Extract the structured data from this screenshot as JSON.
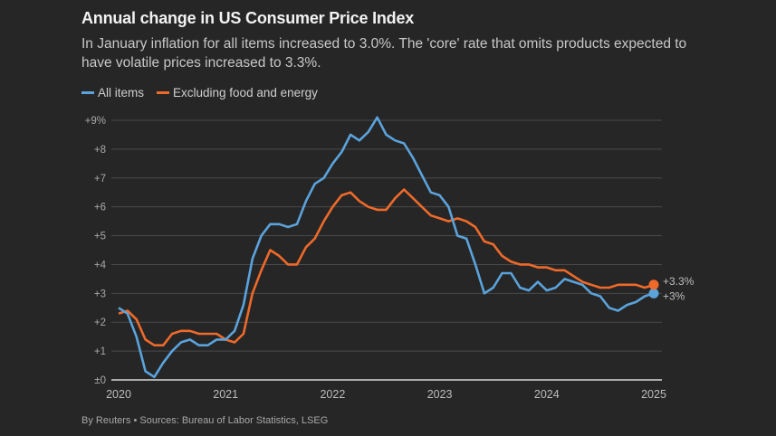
{
  "header": {
    "title": "Annual change in US Consumer Price Index",
    "subtitle": "In January inflation for all items increased to 3.0%. The 'core' rate that omits products expected to have volatile prices increased to 3.3%."
  },
  "footer": "By Reuters • Sources: Bureau of Labor Statistics, LSEG",
  "chart_data": {
    "type": "line",
    "title": "Annual change in US Consumer Price Index",
    "xlabel": "",
    "ylabel": "",
    "x_start": "2020-01",
    "x_end": "2025-01",
    "frequency": "monthly",
    "xticks": [
      "2020",
      "2021",
      "2022",
      "2023",
      "2024",
      "2025"
    ],
    "yticks": [
      "±0",
      "+1",
      "+2",
      "+3",
      "+4",
      "+5",
      "+6",
      "+7",
      "+8",
      "+9%"
    ],
    "ylim": [
      0,
      9
    ],
    "grid": true,
    "legend_position": "top-left",
    "series": [
      {
        "name": "All items",
        "color": "#5ba3dc",
        "end_label": "+3%",
        "values": [
          2.5,
          2.3,
          1.5,
          0.3,
          0.1,
          0.6,
          1.0,
          1.3,
          1.4,
          1.2,
          1.2,
          1.4,
          1.4,
          1.7,
          2.6,
          4.2,
          5.0,
          5.4,
          5.4,
          5.3,
          5.4,
          6.2,
          6.8,
          7.0,
          7.5,
          7.9,
          8.5,
          8.3,
          8.6,
          9.1,
          8.5,
          8.3,
          8.2,
          7.7,
          7.1,
          6.5,
          6.4,
          6.0,
          5.0,
          4.9,
          4.0,
          3.0,
          3.2,
          3.7,
          3.7,
          3.2,
          3.1,
          3.4,
          3.1,
          3.2,
          3.5,
          3.4,
          3.3,
          3.0,
          2.9,
          2.5,
          2.4,
          2.6,
          2.7,
          2.9,
          3.0
        ]
      },
      {
        "name": "Excluding food and energy",
        "color": "#ee6a2a",
        "end_label": "+3.3%",
        "values": [
          2.3,
          2.4,
          2.1,
          1.4,
          1.2,
          1.2,
          1.6,
          1.7,
          1.7,
          1.6,
          1.6,
          1.6,
          1.4,
          1.3,
          1.6,
          3.0,
          3.8,
          4.5,
          4.3,
          4.0,
          4.0,
          4.6,
          4.9,
          5.5,
          6.0,
          6.4,
          6.5,
          6.2,
          6.0,
          5.9,
          5.9,
          6.3,
          6.6,
          6.3,
          6.0,
          5.7,
          5.6,
          5.5,
          5.6,
          5.5,
          5.3,
          4.8,
          4.7,
          4.3,
          4.1,
          4.0,
          4.0,
          3.9,
          3.9,
          3.8,
          3.8,
          3.6,
          3.4,
          3.3,
          3.2,
          3.2,
          3.3,
          3.3,
          3.3,
          3.2,
          3.3
        ]
      }
    ]
  }
}
